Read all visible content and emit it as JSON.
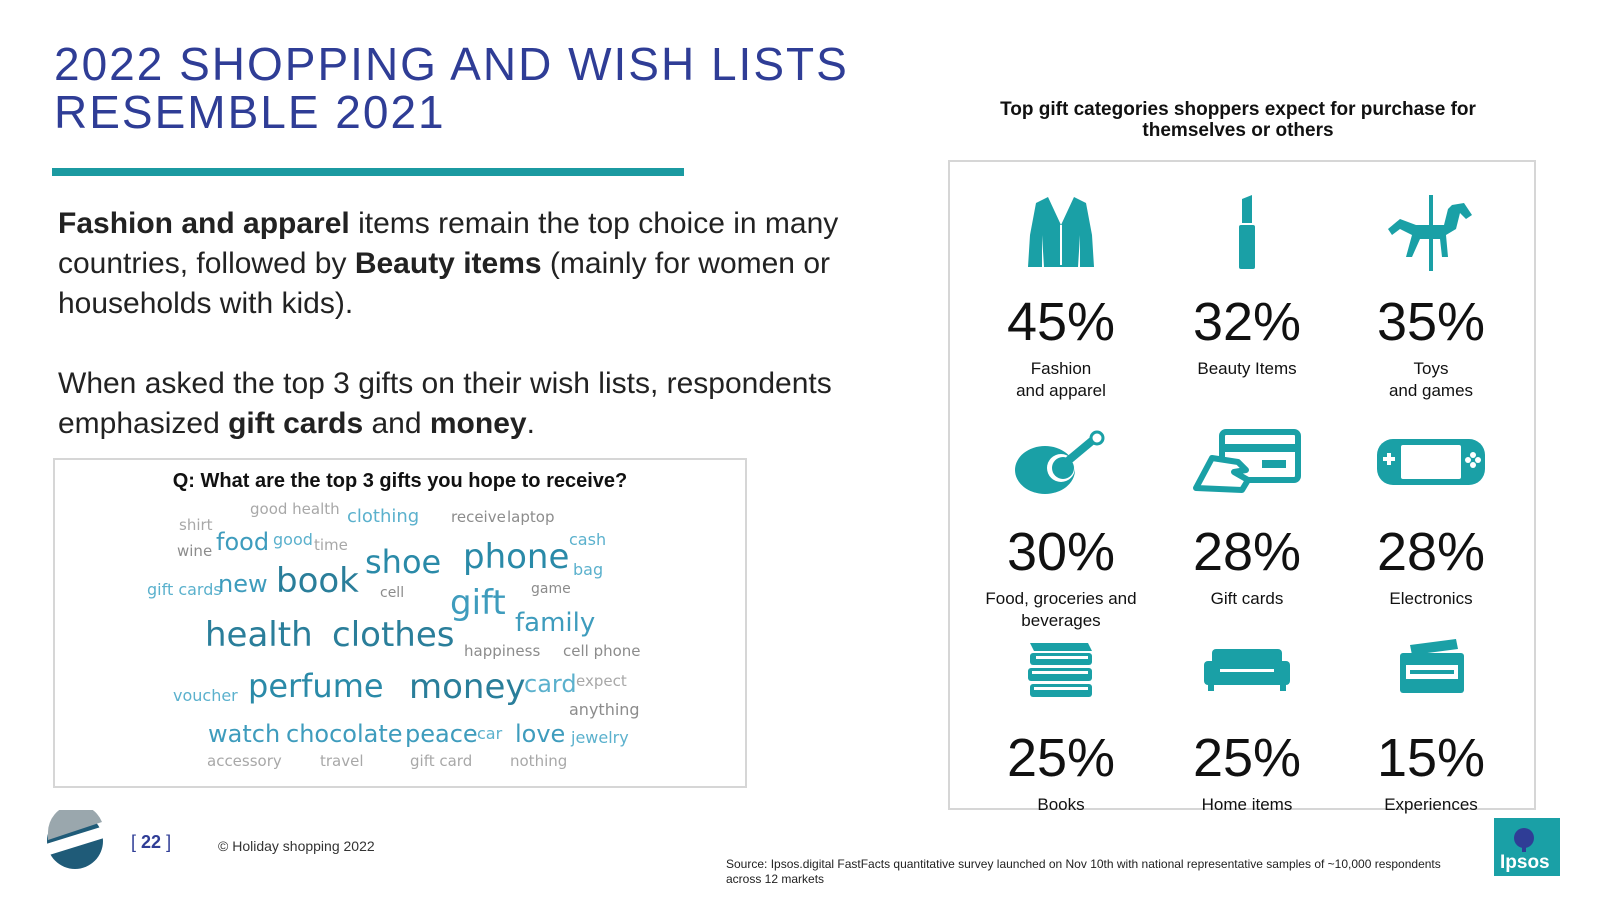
{
  "title": {
    "line1": "2022 SHOPPING AND WISH LISTS",
    "line2": "RESEMBLE 2021"
  },
  "body": {
    "p1": [
      {
        "text": "Fashion and apparel",
        "bold": true
      },
      {
        "text": " items remain the top choice in many countries, followed by ",
        "bold": false
      },
      {
        "text": "Beauty items",
        "bold": true
      },
      {
        "text": " (mainly for women or households with kids).",
        "bold": false
      }
    ],
    "p2": [
      {
        "text": "When asked the top 3 gifts on their wish lists, respondents emphasized ",
        "bold": false
      },
      {
        "text": "gift cards",
        "bold": true
      },
      {
        "text": " and ",
        "bold": false
      },
      {
        "text": "money",
        "bold": true
      },
      {
        "text": ".",
        "bold": false
      }
    ]
  },
  "word_cloud": {
    "question": "Q: What are the top 3 gifts you hope to receive?",
    "words": [
      {
        "text": "shirt",
        "color": "#a8a8a8"
      },
      {
        "text": "good health",
        "color": "#a8a8a8"
      },
      {
        "text": "clothing",
        "color": "#5bb1cd"
      },
      {
        "text": "receive",
        "color": "#8c8c8c"
      },
      {
        "text": "laptop",
        "color": "#8c8c8c"
      },
      {
        "text": "food",
        "color": "#3e9cbd"
      },
      {
        "text": "good",
        "color": "#5bb1cd"
      },
      {
        "text": "time",
        "color": "#a8a8a8"
      },
      {
        "text": "wine",
        "color": "#8c8c8c"
      },
      {
        "text": "shoe",
        "color": "#2a8aa8"
      },
      {
        "text": "phone",
        "color": "#2a8aa8"
      },
      {
        "text": "cash",
        "color": "#5bb1cd"
      },
      {
        "text": "bag",
        "color": "#5bb1cd"
      },
      {
        "text": "gift cards",
        "color": "#5bb1cd"
      },
      {
        "text": "new",
        "color": "#3e9cbd"
      },
      {
        "text": "book",
        "color": "#2a7e9a"
      },
      {
        "text": "cell",
        "color": "#8c8c8c"
      },
      {
        "text": "gift",
        "color": "#3e9cbd"
      },
      {
        "text": "game",
        "color": "#8c8c8c"
      },
      {
        "text": "family",
        "color": "#3e9cbd"
      },
      {
        "text": "health",
        "color": "#2a7e9a"
      },
      {
        "text": "clothes",
        "color": "#2a7e9a"
      },
      {
        "text": "happiness",
        "color": "#8c8c8c"
      },
      {
        "text": "cell phone",
        "color": "#8c8c8c"
      },
      {
        "text": "voucher",
        "color": "#5bb1cd"
      },
      {
        "text": "perfume",
        "color": "#2a8aa8"
      },
      {
        "text": "money",
        "color": "#2a7e9a"
      },
      {
        "text": "card",
        "color": "#5bb1cd"
      },
      {
        "text": "expect",
        "color": "#a8a8a8"
      },
      {
        "text": "anything",
        "color": "#8c8c8c"
      },
      {
        "text": "watch",
        "color": "#3e9cbd"
      },
      {
        "text": "chocolate",
        "color": "#3e9cbd"
      },
      {
        "text": "peace",
        "color": "#3e9cbd"
      },
      {
        "text": "car",
        "color": "#5bb1cd"
      },
      {
        "text": "love",
        "color": "#3e9cbd"
      },
      {
        "text": "jewelry",
        "color": "#5bb1cd"
      },
      {
        "text": "accessory",
        "color": "#a8a8a8"
      },
      {
        "text": "travel",
        "color": "#a8a8a8"
      },
      {
        "text": "gift card",
        "color": "#a8a8a8"
      },
      {
        "text": "nothing",
        "color": "#a8a8a8"
      }
    ]
  },
  "categories_heading": "Top gift categories shoppers expect for purchase for themselves or others",
  "categories": [
    {
      "pct": "45%",
      "label": "Fashion\nand apparel",
      "icon": "jacket-icon"
    },
    {
      "pct": "32%",
      "label": "Beauty Items",
      "icon": "lipstick-icon"
    },
    {
      "pct": "35%",
      "label": "Toys\nand games",
      "icon": "carousel-horse-icon"
    },
    {
      "pct": "30%",
      "label": "Food, groceries and\nbeverages",
      "icon": "food-icon"
    },
    {
      "pct": "28%",
      "label": "Gift cards",
      "icon": "gift-card-hand-icon"
    },
    {
      "pct": "28%",
      "label": "Electronics",
      "icon": "game-console-icon"
    },
    {
      "pct": "25%",
      "label": "Books",
      "icon": "books-icon"
    },
    {
      "pct": "25%",
      "label": "Home items",
      "icon": "sofa-icon"
    },
    {
      "pct": "15%",
      "label": "Experiences",
      "icon": "ticket-icon"
    }
  ],
  "footer": {
    "page_number": "22",
    "bracket_open": "[",
    "bracket_close": "]",
    "copyright": "© Holiday shopping 2022",
    "source": "Source:  Ipsos.digital FastFacts quantitative survey launched on Nov 10th with national representative samples of ~10,000 respondents across 12 markets",
    "brand": "Ipsos"
  },
  "colors": {
    "title": "#2f3d96",
    "accent_teal": "#1b9aa1",
    "icon_teal": "#1aa0a6"
  }
}
